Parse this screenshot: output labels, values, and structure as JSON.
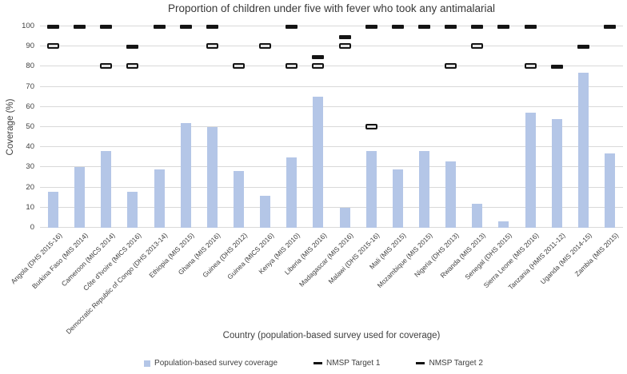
{
  "chart_data": {
    "type": "bar",
    "title": "Proportion of children under five with fever who took any antimalarial",
    "xlabel": "Country (population-based survey used for coverage)",
    "ylabel": "Coverage (%)",
    "ylim": [
      0,
      100
    ],
    "yticks": [
      0,
      10,
      20,
      30,
      40,
      50,
      60,
      70,
      80,
      90,
      100
    ],
    "grid": "horizontal",
    "legend_position": "bottom",
    "gridline_color": "#d9d9d9",
    "outline_marker_fill": "#e3e3e3",
    "categories": [
      "Angola (DHS 2015-16)",
      "Burkina Faso (MIS 2014)",
      "Cameroon (MICS 2014)",
      "Côte d'Ivoire (MICS 2016)",
      "Democratic Republic of Congo (DHS 2013-14)",
      "Ethiopia (MIS 2015)",
      "Ghana (MIS 2016)",
      "Guinea (DHS 2012)",
      "Guinea (MICS 2016)",
      "Kenya (MIS 2010)",
      "Liberia (MIS 2016)",
      "Madagascar (MIS 2016)",
      "Malawi (DHS 2015-16)",
      "Mali (MIS 2015)",
      "Mozambique (MIS 2015)",
      "Nigeria (DHS 2013)",
      "Rwanda (MIS 2013)",
      "Senegal (DHS 2015)",
      "Sierra Leone (MIS 2016)",
      "Tanzania (HMIS 2011-12)",
      "Uganda (MIS 2014-15)",
      "Zambia (MIS 2015)"
    ],
    "series": [
      {
        "name": "Population-based survey coverage",
        "type": "bar",
        "color": "#b4c6e7",
        "values": [
          18,
          30,
          38,
          18,
          29,
          52,
          50,
          28,
          16,
          35,
          65,
          10,
          38,
          29,
          38,
          33,
          12,
          3,
          57,
          54,
          77,
          37
        ]
      },
      {
        "name": "NMSP Target 1",
        "type": "dash",
        "marker_style": "solid",
        "color": "#141414",
        "values": [
          100,
          100,
          100,
          90,
          100,
          100,
          100,
          null,
          null,
          100,
          85,
          95,
          100,
          100,
          100,
          100,
          100,
          100,
          100,
          80,
          90,
          100
        ]
      },
      {
        "name": "NMSP Target 2",
        "type": "dash",
        "marker_style": "outlined",
        "color": "#141414",
        "values": [
          90,
          null,
          80,
          80,
          null,
          null,
          90,
          80,
          90,
          80,
          80,
          90,
          50,
          null,
          null,
          80,
          90,
          null,
          80,
          null,
          null,
          null
        ]
      }
    ]
  }
}
